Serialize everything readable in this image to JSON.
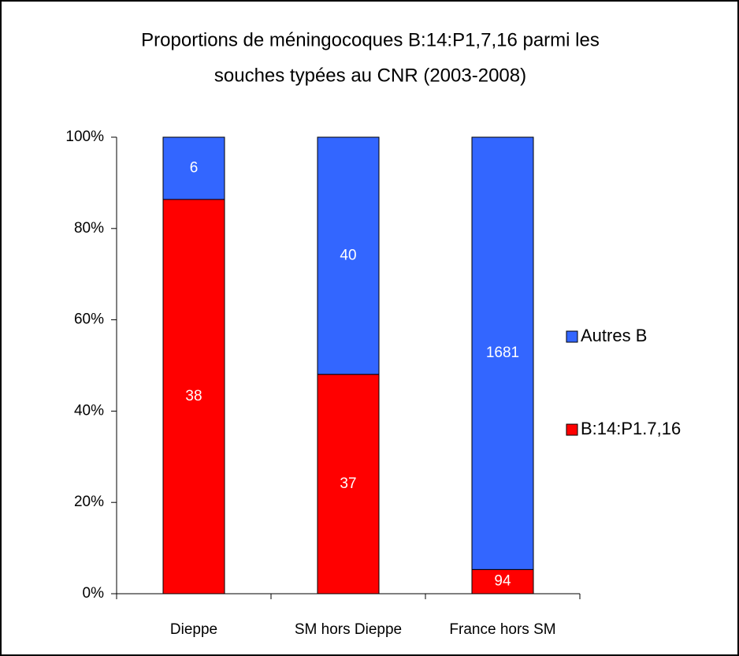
{
  "chart_data": {
    "type": "percent_stacked_bar",
    "title": [
      "Proportions de méningocoques B:14:P1,7,16 parmi les",
      "souches typées au CNR (2003-2008)"
    ],
    "categories": [
      "Dieppe",
      "SM hors Dieppe",
      "France hors SM"
    ],
    "series": [
      {
        "name": "B:14:P1.7,16",
        "color": "#ff0000",
        "values": [
          38,
          37,
          94
        ]
      },
      {
        "name": "Autres B",
        "color": "#3366ff",
        "values": [
          6,
          40,
          1681
        ]
      }
    ],
    "ylim": [
      0,
      100
    ],
    "yticks": [
      {
        "value": 0,
        "label": "0%"
      },
      {
        "value": 20,
        "label": "20%"
      },
      {
        "value": 40,
        "label": "40%"
      },
      {
        "value": 60,
        "label": "60%"
      },
      {
        "value": 80,
        "label": "80%"
      },
      {
        "value": 100,
        "label": "100%"
      }
    ],
    "legend": "right"
  }
}
